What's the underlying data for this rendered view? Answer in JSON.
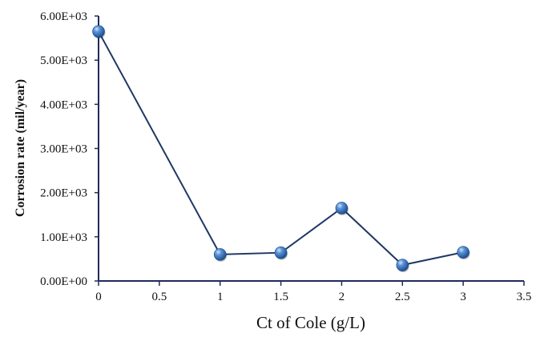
{
  "chart_data": {
    "type": "line",
    "title": "",
    "xlabel": "Ct of Cole (g/L)",
    "ylabel": "Corrosion rate (mil/year)",
    "x": [
      0,
      1,
      1.5,
      2,
      2.5,
      3
    ],
    "series": [
      {
        "name": "Corrosion rate",
        "values": [
          5650,
          600,
          640,
          1650,
          360,
          650
        ]
      }
    ],
    "xlim": [
      0,
      3.5
    ],
    "ylim": [
      0,
      6000
    ],
    "x_ticks": [
      "0",
      "0.5",
      "1",
      "1.5",
      "2",
      "2.5",
      "3",
      "3.5"
    ],
    "y_ticks": [
      "0.00E+00",
      "1.00E+03",
      "2.00E+03",
      "3.00E+03",
      "4.00E+03",
      "5.00E+03",
      "6.00E+03"
    ],
    "grid": false,
    "legend": null,
    "colors": {
      "line": "#1f3864",
      "marker": "#3a74c4",
      "axis": "#1f2a5c"
    }
  }
}
